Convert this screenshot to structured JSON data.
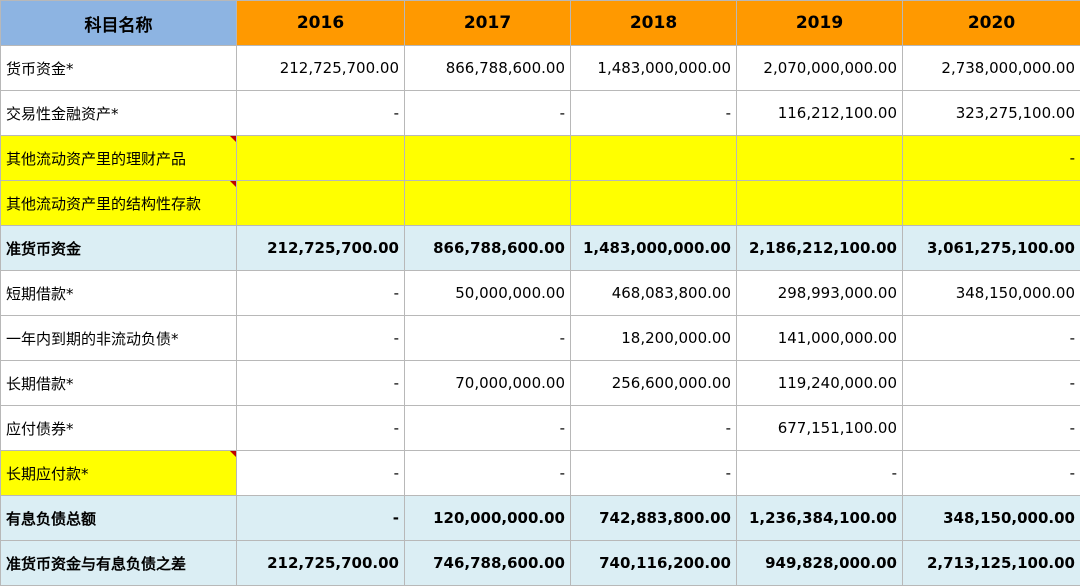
{
  "header": {
    "name_label": "科目名称",
    "years": [
      "2016",
      "2017",
      "2018",
      "2019",
      "2020"
    ]
  },
  "rows": [
    {
      "label": "货币资金*",
      "type": "plain",
      "values": [
        "212,725,700.00",
        "866,788,600.00",
        "1,483,000,000.00",
        "2,070,000,000.00",
        "2,738,000,000.00"
      ]
    },
    {
      "label": "交易性金融资产*",
      "type": "plain",
      "values": [
        "-",
        "-",
        "-",
        "116,212,100.00",
        "323,275,100.00"
      ]
    },
    {
      "label": "其他流动资产里的理财产品",
      "type": "yellow",
      "values": [
        "",
        "",
        "",
        "",
        "-"
      ]
    },
    {
      "label": "其他流动资产里的结构性存款",
      "type": "yellow",
      "values": [
        "",
        "",
        "",
        "",
        ""
      ]
    },
    {
      "label": "准货币资金",
      "type": "total",
      "values": [
        "212,725,700.00",
        "866,788,600.00",
        "1,483,000,000.00",
        "2,186,212,100.00",
        "3,061,275,100.00"
      ]
    },
    {
      "label": "短期借款*",
      "type": "plain",
      "values": [
        "-",
        "50,000,000.00",
        "468,083,800.00",
        "298,993,000.00",
        "348,150,000.00"
      ]
    },
    {
      "label": "一年内到期的非流动负债*",
      "type": "plain",
      "values": [
        "-",
        "-",
        "18,200,000.00",
        "141,000,000.00",
        "-"
      ]
    },
    {
      "label": "长期借款*",
      "type": "plain",
      "values": [
        "-",
        "70,000,000.00",
        "256,600,000.00",
        "119,240,000.00",
        "-"
      ]
    },
    {
      "label": "应付债券*",
      "type": "plain",
      "values": [
        "-",
        "-",
        "-",
        "677,151,100.00",
        "-"
      ]
    },
    {
      "label": "长期应付款*",
      "type": "plain-yellow-label",
      "values": [
        "-",
        "-",
        "-",
        "-",
        "-"
      ]
    },
    {
      "label": "有息负债总额",
      "type": "total",
      "values": [
        "-",
        "120,000,000.00",
        "742,883,800.00",
        "1,236,384,100.00",
        "348,150,000.00"
      ]
    },
    {
      "label": "准货币资金与有息负债之差",
      "type": "total",
      "values": [
        "212,725,700.00",
        "746,788,600.00",
        "740,116,200.00",
        "949,828,000.00",
        "2,713,125,100.00"
      ]
    }
  ],
  "colors": {
    "header_name_bg": "#8db4e2",
    "header_year_bg": "#ff9900",
    "highlight_yellow": "#ffff00",
    "total_row_bg": "#dbeef4",
    "comment_flag": "#c00000"
  }
}
